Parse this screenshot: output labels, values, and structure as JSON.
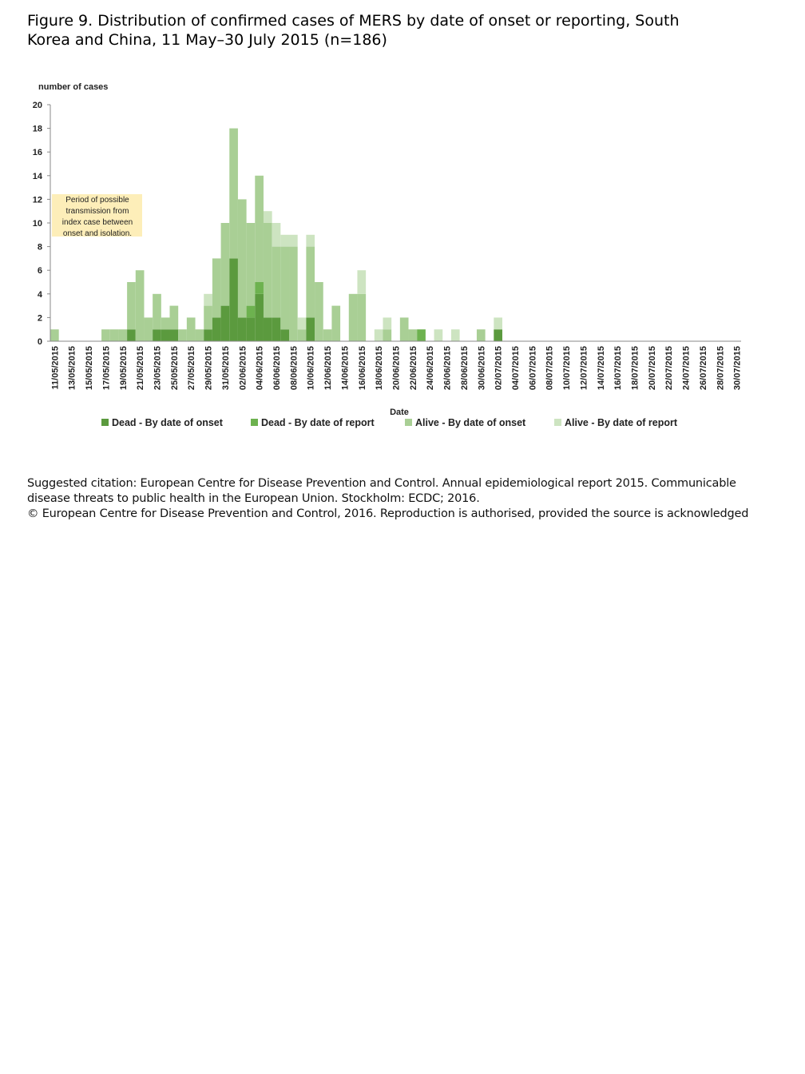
{
  "chart_data": {
    "type": "stacked_bar",
    "title": "Figure 9. Distribution of confirmed cases of MERS by date of onset or reporting, South Korea and China, 11 May–30 July 2015 (n=186)",
    "y_label": "number of cases",
    "x_label": "Date",
    "annotation": [
      "Period of possible",
      "transmission from",
      "index case between",
      "onset and isolation."
    ],
    "citation": [
      "Suggested citation: European Centre for Disease Prevention and Control. Annual epidemiological report 2015. Communicable",
      "disease threats to public health in the European Union. Stockholm: ECDC; 2016.",
      "© European Centre for Disease Prevention and Control, 2016. Reproduction is authorised, provided the source is acknowledged"
    ],
    "categories": [
      "11/05/2015",
      null,
      "13/05/2015",
      null,
      "15/05/2015",
      null,
      "17/05/2015",
      null,
      "19/05/2015",
      null,
      "21/05/2015",
      null,
      "23/05/2015",
      null,
      "25/05/2015",
      null,
      "27/05/2015",
      null,
      "29/05/2015",
      null,
      "31/05/2015",
      null,
      "02/06/2015",
      null,
      "04/06/2015",
      null,
      "06/06/2015",
      null,
      "08/06/2015",
      null,
      "10/06/2015",
      null,
      "12/06/2015",
      null,
      "14/06/2015",
      null,
      "16/06/2015",
      null,
      "18/06/2015",
      null,
      "20/06/2015",
      null,
      "22/06/2015",
      null,
      "24/06/2015",
      null,
      "26/06/2015",
      null,
      "28/06/2015",
      null,
      "30/06/2015",
      null,
      "02/07/2015",
      null,
      "04/07/2015",
      null,
      "06/07/2015",
      null,
      "08/07/2015",
      null,
      "10/07/2015",
      null,
      "12/07/2015",
      null,
      "14/07/2015",
      null,
      "16/07/2015",
      null,
      "18/07/2015",
      null,
      "20/07/2015",
      null,
      "22/07/2015",
      null,
      "24/07/2015",
      null,
      "26/07/2015",
      null,
      "28/07/2015",
      null,
      "30/07/2015"
    ],
    "series": [
      {
        "name": "Dead - By date of onset",
        "color": "#5b9a3e",
        "values": [
          0,
          0,
          0,
          0,
          0,
          0,
          0,
          0,
          0,
          1,
          0,
          0,
          1,
          1,
          1,
          0,
          0,
          0,
          1,
          2,
          3,
          7,
          2,
          2,
          4,
          2,
          2,
          1,
          0,
          0,
          2,
          0,
          0,
          0,
          0,
          0,
          0,
          0,
          0,
          0,
          0,
          0,
          0,
          0,
          0,
          0,
          0,
          0,
          0,
          0,
          0,
          0,
          1,
          0,
          0,
          0,
          0,
          0,
          0,
          0,
          0,
          0,
          0,
          0,
          0,
          0,
          0,
          0,
          0,
          0,
          0,
          0,
          0,
          0,
          0,
          0,
          0,
          0,
          0,
          0,
          0
        ]
      },
      {
        "name": "Dead - By date of report",
        "color": "#6db24f",
        "values": [
          0,
          0,
          0,
          0,
          0,
          0,
          0,
          0,
          0,
          0,
          0,
          0,
          0,
          0,
          0,
          0,
          0,
          0,
          0,
          0,
          0,
          0,
          0,
          1,
          1,
          0,
          0,
          0,
          0,
          0,
          0,
          0,
          0,
          0,
          0,
          0,
          0,
          0,
          0,
          0,
          0,
          0,
          0,
          1,
          0,
          0,
          0,
          0,
          0,
          0,
          0,
          0,
          0,
          0,
          0,
          0,
          0,
          0,
          0,
          0,
          0,
          0,
          0,
          0,
          0,
          0,
          0,
          0,
          0,
          0,
          0,
          0,
          0,
          0,
          0,
          0,
          0,
          0,
          0,
          0,
          0
        ]
      },
      {
        "name": "Alive - By date of onset",
        "color": "#a9cf95",
        "values": [
          1,
          0,
          0,
          0,
          0,
          0,
          1,
          1,
          1,
          4,
          6,
          2,
          3,
          1,
          2,
          1,
          2,
          1,
          2,
          5,
          7,
          11,
          10,
          7,
          9,
          8,
          6,
          7,
          8,
          1,
          6,
          5,
          1,
          3,
          0,
          4,
          4,
          0,
          0,
          1,
          0,
          2,
          1,
          0,
          0,
          0,
          0,
          0,
          0,
          0,
          1,
          0,
          0,
          0,
          0,
          0,
          0,
          0,
          0,
          0,
          0,
          0,
          0,
          0,
          0,
          0,
          0,
          0,
          0,
          0,
          0,
          0,
          0,
          0,
          0,
          0,
          0,
          0,
          0,
          0,
          0
        ]
      },
      {
        "name": "Alive - By date of report",
        "color": "#cde4c1",
        "values": [
          0,
          0,
          0,
          0,
          0,
          0,
          0,
          0,
          0,
          0,
          0,
          0,
          0,
          0,
          0,
          0,
          0,
          0,
          1,
          0,
          0,
          0,
          0,
          0,
          0,
          1,
          2,
          1,
          1,
          1,
          1,
          0,
          0,
          0,
          0,
          0,
          2,
          0,
          1,
          1,
          0,
          0,
          0,
          0,
          0,
          1,
          0,
          1,
          0,
          0,
          0,
          0,
          1,
          0,
          0,
          0,
          0,
          0,
          0,
          0,
          0,
          0,
          0,
          0,
          0,
          0,
          0,
          0,
          0,
          0,
          0,
          0,
          0,
          0,
          0,
          0,
          0,
          0,
          0,
          0,
          0
        ]
      }
    ],
    "ylim": [
      0,
      20
    ],
    "yticks": [
      0,
      2,
      4,
      6,
      8,
      10,
      12,
      14,
      16,
      18,
      20
    ]
  }
}
